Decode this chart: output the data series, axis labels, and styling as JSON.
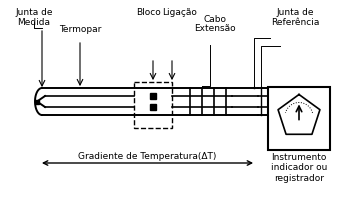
{
  "bg_color": "#ffffff",
  "line_color": "#000000",
  "labels": {
    "junta_medida": "Junta de\nMedida",
    "termopar": "Termopar",
    "bloco": "Bloco",
    "ligacao": "Ligação",
    "cabo": "Cabo",
    "extensao": "Extensão",
    "junta_ref": "Junta de\nReferência",
    "instrumento": "Instrumento\nindicador ou\nregistrador",
    "gradiente": "Gradiente de Temperatura(ΔT)"
  },
  "figsize": [
    3.46,
    1.98
  ],
  "dpi": 100
}
